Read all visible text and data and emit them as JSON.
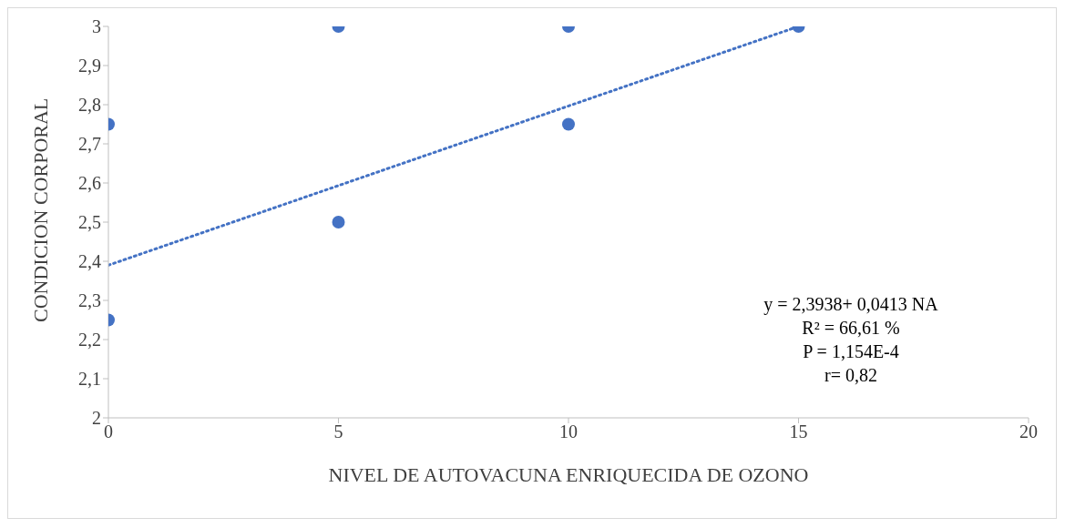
{
  "chart_data": {
    "type": "scatter",
    "xlabel": "NIVEL DE AUTOVACUNA ENRIQUECIDA DE OZONO",
    "ylabel": "CONDICION CORPORAL",
    "xlim": [
      0,
      20
    ],
    "xticks": [
      0,
      5,
      10,
      15,
      20
    ],
    "ylim": [
      2,
      3
    ],
    "yticks": [
      {
        "value": 2,
        "label": "2"
      },
      {
        "value": 2.1,
        "label": "2,1"
      },
      {
        "value": 2.2,
        "label": "2,2"
      },
      {
        "value": 2.3,
        "label": "2,3"
      },
      {
        "value": 2.4,
        "label": "2,4"
      },
      {
        "value": 2.5,
        "label": "2,5"
      },
      {
        "value": 2.6,
        "label": "2,6"
      },
      {
        "value": 2.7,
        "label": "2,7"
      },
      {
        "value": 2.8,
        "label": "2,8"
      },
      {
        "value": 2.9,
        "label": "2,9"
      },
      {
        "value": 3,
        "label": "3"
      }
    ],
    "grid": false,
    "marker": "circle",
    "series": [
      {
        "color": "#4472c4",
        "x": [
          0,
          0,
          5,
          5,
          10,
          10,
          15
        ],
        "values": [
          2.75,
          2.25,
          3,
          2.5,
          3,
          2.75,
          3
        ]
      },
      {
        "type": "line",
        "color": "#4472c4",
        "line_style": "dotted",
        "marker": "none",
        "x": [
          0,
          15
        ],
        "values": [
          2.39,
          3
        ]
      }
    ],
    "annotations": [
      "y = 2,3938+ 0,0413 NA",
      "R² = 66,61 %",
      "P = 1,154E-4",
      "r= 0,82"
    ]
  }
}
